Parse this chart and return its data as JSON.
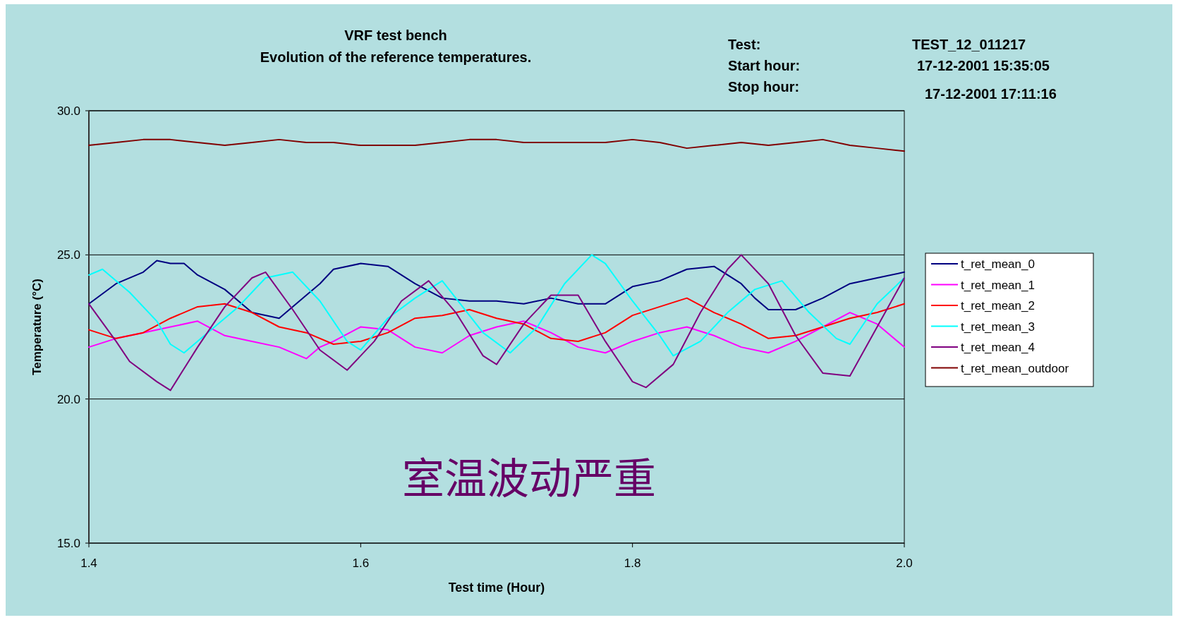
{
  "chart_data": {
    "type": "line",
    "title": "VRF test bench",
    "subtitle": "Evolution of the reference temperatures.",
    "xlabel": "Test time (Hour)",
    "ylabel": "Temperature (°C)",
    "annotations": [
      "Test:",
      "TEST_12_011217",
      "Start hour:",
      "17-12-2001 15:35:05",
      "Stop hour:",
      "17-12-2001 17:11:16",
      "室温波动严重"
    ],
    "xlim": [
      1.4,
      2.0
    ],
    "ylim": [
      15,
      30
    ],
    "xticks": [
      1.4,
      1.6,
      1.8,
      {
        "value": 2.0,
        "label": "2.0"
      }
    ],
    "yticks": [
      {
        "value": 15,
        "label": "15.0"
      },
      {
        "value": 20,
        "label": "20.0"
      },
      {
        "value": 25,
        "label": "25.0"
      },
      {
        "value": 30,
        "label": "30.0"
      }
    ],
    "grid": "y",
    "legend": "right",
    "marker": "none",
    "line_style": "solid",
    "series": [
      {
        "name": "t_ret_mean_0",
        "color": "#000080",
        "x": [
          1.4,
          1.42,
          1.44,
          1.45,
          1.46,
          1.47,
          1.48,
          1.5,
          1.52,
          1.54,
          1.56,
          1.57,
          1.58,
          1.6,
          1.62,
          1.64,
          1.66,
          1.68,
          1.7,
          1.72,
          1.74,
          1.76,
          1.78,
          1.8,
          1.82,
          1.84,
          1.86,
          1.88,
          1.89,
          1.9,
          1.92,
          1.94,
          1.96,
          1.98,
          2.0
        ],
        "values": [
          23.3,
          24.0,
          24.4,
          24.8,
          24.7,
          24.7,
          24.3,
          23.8,
          23.0,
          22.8,
          23.6,
          24.0,
          24.5,
          24.7,
          24.6,
          24.0,
          23.5,
          23.4,
          23.4,
          23.3,
          23.5,
          23.3,
          23.3,
          23.9,
          24.1,
          24.5,
          24.6,
          24.0,
          23.5,
          23.1,
          23.1,
          23.5,
          24.0,
          24.2,
          24.4
        ]
      },
      {
        "name": "t_ret_mean_1",
        "color": "#ff00ff",
        "x": [
          1.4,
          1.42,
          1.44,
          1.46,
          1.48,
          1.5,
          1.52,
          1.54,
          1.56,
          1.57,
          1.58,
          1.6,
          1.62,
          1.64,
          1.66,
          1.68,
          1.7,
          1.72,
          1.74,
          1.76,
          1.78,
          1.8,
          1.82,
          1.84,
          1.86,
          1.88,
          1.9,
          1.92,
          1.94,
          1.96,
          1.98,
          2.0
        ],
        "values": [
          21.8,
          22.1,
          22.3,
          22.5,
          22.7,
          22.2,
          22.0,
          21.8,
          21.4,
          21.8,
          22.0,
          22.5,
          22.4,
          21.8,
          21.6,
          22.2,
          22.5,
          22.7,
          22.3,
          21.8,
          21.6,
          22.0,
          22.3,
          22.5,
          22.2,
          21.8,
          21.6,
          22.0,
          22.5,
          23.0,
          22.6,
          21.8
        ]
      },
      {
        "name": "t_ret_mean_2",
        "color": "#ff0000",
        "x": [
          1.4,
          1.42,
          1.44,
          1.46,
          1.48,
          1.5,
          1.52,
          1.54,
          1.56,
          1.58,
          1.6,
          1.62,
          1.64,
          1.66,
          1.68,
          1.7,
          1.72,
          1.74,
          1.76,
          1.78,
          1.8,
          1.82,
          1.84,
          1.86,
          1.88,
          1.9,
          1.92,
          1.94,
          1.96,
          1.98,
          2.0
        ],
        "values": [
          22.4,
          22.1,
          22.3,
          22.8,
          23.2,
          23.3,
          23.0,
          22.5,
          22.3,
          21.9,
          22.0,
          22.3,
          22.8,
          22.9,
          23.1,
          22.8,
          22.6,
          22.1,
          22.0,
          22.3,
          22.9,
          23.2,
          23.5,
          23.0,
          22.6,
          22.1,
          22.2,
          22.5,
          22.8,
          23.0,
          23.3
        ]
      },
      {
        "name": "t_ret_mean_3",
        "color": "#00ffff",
        "x": [
          1.4,
          1.41,
          1.43,
          1.45,
          1.46,
          1.47,
          1.49,
          1.51,
          1.53,
          1.55,
          1.57,
          1.59,
          1.6,
          1.62,
          1.64,
          1.66,
          1.67,
          1.69,
          1.71,
          1.73,
          1.75,
          1.77,
          1.78,
          1.8,
          1.82,
          1.83,
          1.85,
          1.87,
          1.89,
          1.91,
          1.93,
          1.95,
          1.96,
          1.98,
          2.0
        ],
        "values": [
          24.3,
          24.5,
          23.7,
          22.7,
          21.9,
          21.6,
          22.4,
          23.2,
          24.2,
          24.4,
          23.4,
          22.0,
          21.7,
          22.8,
          23.5,
          24.1,
          23.5,
          22.3,
          21.6,
          22.5,
          24.0,
          25.0,
          24.7,
          23.4,
          22.2,
          21.5,
          22.0,
          23.0,
          23.8,
          24.1,
          23.0,
          22.1,
          21.9,
          23.3,
          24.2
        ]
      },
      {
        "name": "t_ret_mean_4",
        "color": "#800080",
        "x": [
          1.4,
          1.42,
          1.43,
          1.45,
          1.46,
          1.48,
          1.5,
          1.52,
          1.53,
          1.55,
          1.57,
          1.59,
          1.61,
          1.63,
          1.65,
          1.67,
          1.69,
          1.7,
          1.72,
          1.74,
          1.76,
          1.78,
          1.8,
          1.81,
          1.83,
          1.85,
          1.87,
          1.88,
          1.9,
          1.92,
          1.94,
          1.96,
          1.98,
          2.0
        ],
        "values": [
          23.3,
          22.0,
          21.3,
          20.6,
          20.3,
          21.8,
          23.2,
          24.2,
          24.4,
          23.1,
          21.7,
          21.0,
          22.0,
          23.4,
          24.1,
          23.0,
          21.5,
          21.2,
          22.6,
          23.6,
          23.6,
          22.0,
          20.6,
          20.4,
          21.2,
          23.0,
          24.5,
          25.0,
          24.0,
          22.2,
          20.9,
          20.8,
          22.5,
          24.2
        ]
      },
      {
        "name": "t_ret_mean_outdoor",
        "color": "#800000",
        "x": [
          1.4,
          1.42,
          1.44,
          1.46,
          1.48,
          1.5,
          1.52,
          1.54,
          1.56,
          1.58,
          1.6,
          1.62,
          1.64,
          1.66,
          1.68,
          1.7,
          1.72,
          1.74,
          1.76,
          1.78,
          1.8,
          1.82,
          1.84,
          1.86,
          1.88,
          1.9,
          1.92,
          1.94,
          1.96,
          1.98,
          2.0
        ],
        "values": [
          28.8,
          28.9,
          29.0,
          29.0,
          28.9,
          28.8,
          28.9,
          29.0,
          28.9,
          28.9,
          28.8,
          28.8,
          28.8,
          28.9,
          29.0,
          29.0,
          28.9,
          28.9,
          28.9,
          28.9,
          29.0,
          28.9,
          28.7,
          28.8,
          28.9,
          28.8,
          28.9,
          29.0,
          28.8,
          28.7,
          28.6
        ]
      }
    ]
  }
}
